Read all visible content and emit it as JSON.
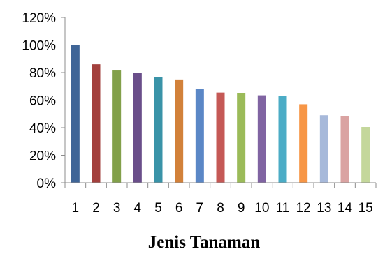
{
  "chart_data": {
    "type": "bar",
    "categories": [
      "1",
      "2",
      "3",
      "4",
      "5",
      "6",
      "7",
      "8",
      "9",
      "10",
      "11",
      "12",
      "13",
      "14",
      "15"
    ],
    "values": [
      100,
      86,
      81.5,
      80,
      76.5,
      75,
      68,
      65.5,
      65,
      63.5,
      63,
      57,
      49,
      48.5,
      40.5
    ],
    "bar_colors": [
      "#3F6597",
      "#A3403D",
      "#82A04A",
      "#6A4E8A",
      "#3A93A8",
      "#D2813A",
      "#5B87C6",
      "#C55956",
      "#9BBB59",
      "#8064A2",
      "#4BACC6",
      "#F79646",
      "#A7B9DA",
      "#DAA3A2",
      "#C4D79B"
    ],
    "ylim": [
      0,
      120
    ],
    "y_ticks": [
      "0%",
      "20%",
      "40%",
      "60%",
      "80%",
      "100%",
      "120%"
    ],
    "y_tick_values": [
      0,
      20,
      40,
      60,
      80,
      100,
      120
    ],
    "xlabel": "Jenis Tanaman",
    "ylabel": "",
    "grid": false,
    "legend": "none"
  }
}
